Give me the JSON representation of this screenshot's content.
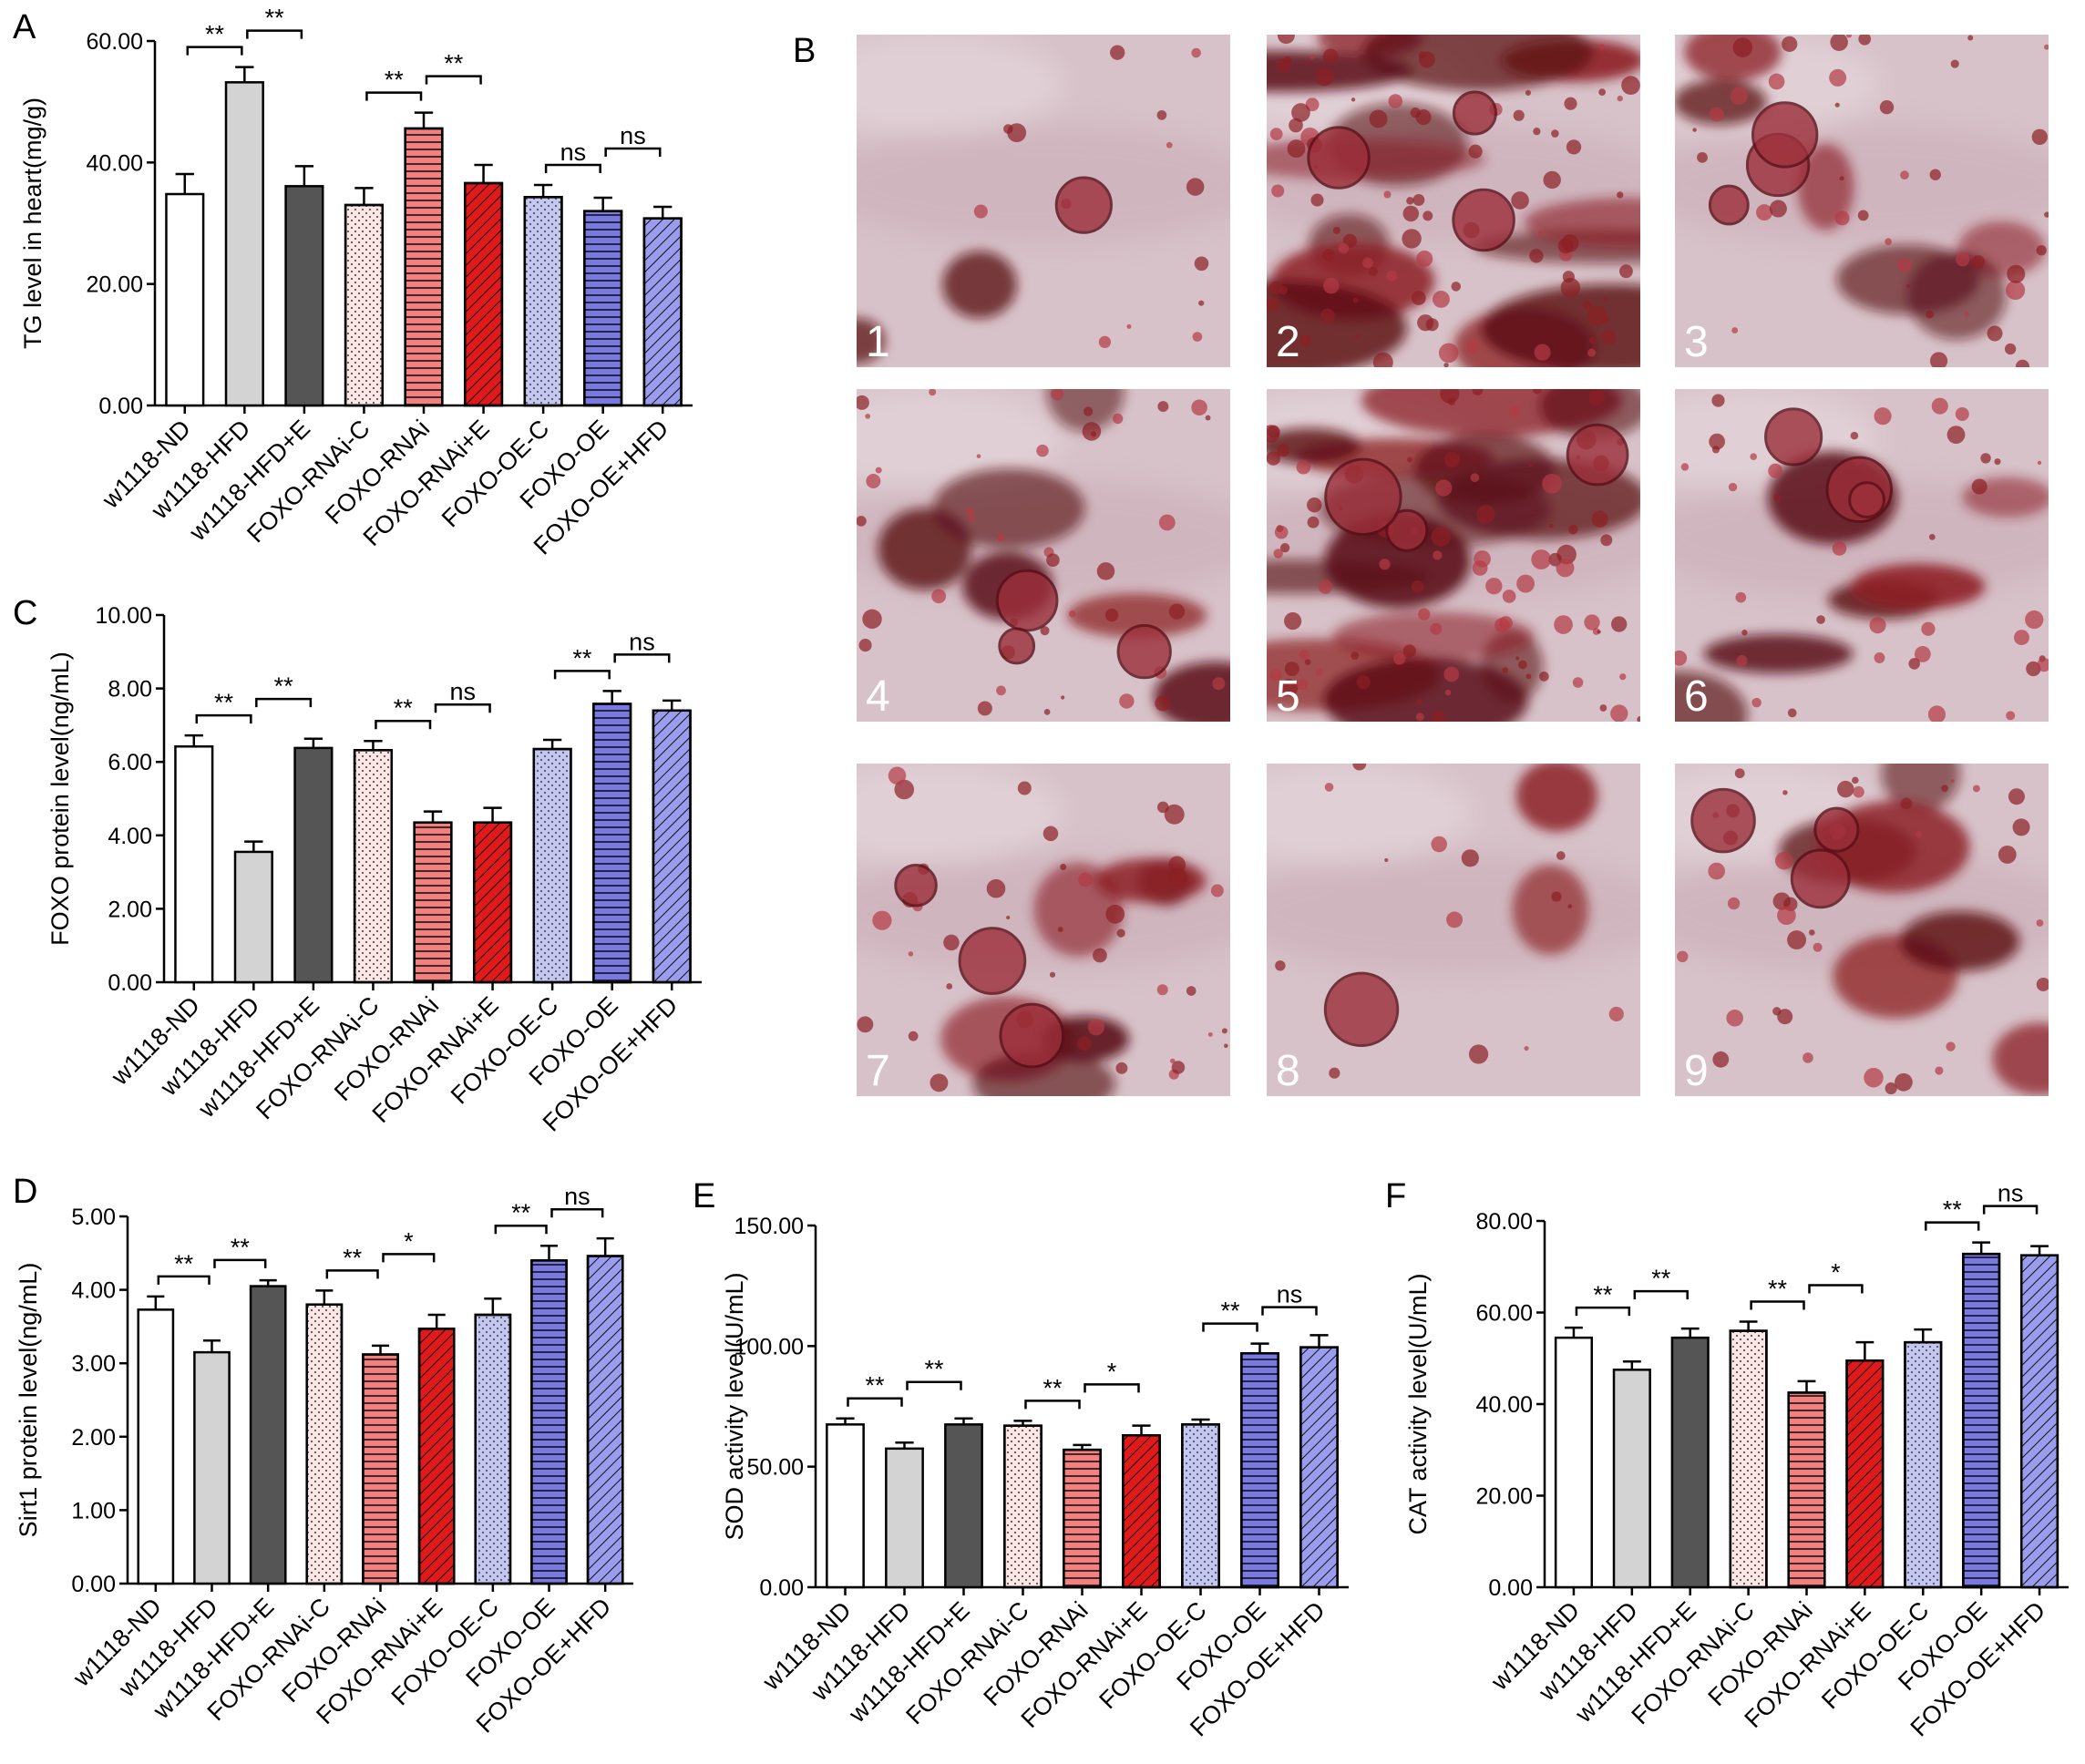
{
  "colors": {
    "axis": "#000000",
    "white_bar": "#ffffff",
    "light_gray_bar": "#d3d3d3",
    "dark_gray_bar": "#555555",
    "pink_bar": "#fce6e6",
    "salmon_bar": "#f47f7f",
    "red_bar": "#e01a1a",
    "lavender_bar": "#c4c7f2",
    "blue_bar": "#7879e3",
    "periwinkle_bar": "#9a9cee",
    "tissue_base": "#d7c2c9",
    "lipid_droplet": "#8c2024"
  },
  "bar_styles": [
    {
      "fill": "#ffffff",
      "pattern": "none"
    },
    {
      "fill": "#d3d3d3",
      "pattern": "none"
    },
    {
      "fill": "#555555",
      "pattern": "none"
    },
    {
      "fill": "#fce6e6",
      "pattern": "dots"
    },
    {
      "fill": "#f47f7f",
      "pattern": "hlines"
    },
    {
      "fill": "#e01a1a",
      "pattern": "diag"
    },
    {
      "fill": "#c4c7f2",
      "pattern": "dots"
    },
    {
      "fill": "#7879e3",
      "pattern": "hlines"
    },
    {
      "fill": "#9a9cee",
      "pattern": "diag"
    }
  ],
  "chart_data": [
    {
      "panel": "A",
      "type": "bar",
      "ylabel": "TG level in heart(mg/g)",
      "ylim": [
        0,
        60
      ],
      "yticks": [
        "0.00",
        "20.00",
        "40.00",
        "60.00"
      ],
      "categories": [
        "w1118-ND",
        "w1118-HFD",
        "w1118-HFD+E",
        "FOXO-RNAi-C",
        "FOXO-RNAi",
        "FOXO-RNAi+E",
        "FOXO-OE-C",
        "FOXO-OE",
        "FOXO-OE+HFD"
      ],
      "values": [
        34.8,
        53.2,
        36.1,
        33.0,
        45.6,
        36.6,
        34.3,
        32.0,
        30.8
      ],
      "errors": [
        3.3,
        2.5,
        3.3,
        2.8,
        2.6,
        3.0,
        2.0,
        2.2,
        1.9
      ],
      "significance": [
        {
          "from": 0,
          "to": 1,
          "label": "**"
        },
        {
          "from": 1,
          "to": 2,
          "label": "**"
        },
        {
          "from": 3,
          "to": 4,
          "label": "**"
        },
        {
          "from": 4,
          "to": 5,
          "label": "**"
        },
        {
          "from": 6,
          "to": 7,
          "label": "ns"
        },
        {
          "from": 7,
          "to": 8,
          "label": "ns"
        }
      ]
    },
    {
      "panel": "C",
      "type": "bar",
      "ylabel": "FOXO protein level(ng/mL)",
      "ylim": [
        0,
        10
      ],
      "yticks": [
        "0.00",
        "2.00",
        "4.00",
        "6.00",
        "8.00",
        "10.00"
      ],
      "categories": [
        "w1118-ND",
        "w1118-HFD",
        "w1118-HFD+E",
        "FOXO-RNAi-C",
        "FOXO-RNAi",
        "FOXO-RNAi+E",
        "FOXO-OE-C",
        "FOXO-OE",
        "FOXO-OE+HFD"
      ],
      "values": [
        6.42,
        3.55,
        6.38,
        6.32,
        4.35,
        4.35,
        6.35,
        7.58,
        7.4
      ],
      "errors": [
        0.3,
        0.28,
        0.25,
        0.25,
        0.3,
        0.4,
        0.25,
        0.35,
        0.27
      ],
      "significance": [
        {
          "from": 0,
          "to": 1,
          "label": "**"
        },
        {
          "from": 1,
          "to": 2,
          "label": "**"
        },
        {
          "from": 3,
          "to": 4,
          "label": "**"
        },
        {
          "from": 4,
          "to": 5,
          "label": "ns"
        },
        {
          "from": 6,
          "to": 7,
          "label": "**"
        },
        {
          "from": 7,
          "to": 8,
          "label": "ns"
        }
      ]
    },
    {
      "panel": "D",
      "type": "bar",
      "ylabel": "Sirt1 protein level(ng/mL)",
      "ylim": [
        0,
        5
      ],
      "yticks": [
        "0.00",
        "1.00",
        "2.00",
        "3.00",
        "4.00",
        "5.00"
      ],
      "categories": [
        "w1118-ND",
        "w1118-HFD",
        "w1118-HFD+E",
        "FOXO-RNAi-C",
        "FOXO-RNAi",
        "FOXO-RNAi+E",
        "FOXO-OE-C",
        "FOXO-OE",
        "FOXO-OE+HFD"
      ],
      "values": [
        3.73,
        3.15,
        4.05,
        3.8,
        3.12,
        3.47,
        3.66,
        4.4,
        4.46
      ],
      "errors": [
        0.18,
        0.16,
        0.08,
        0.19,
        0.12,
        0.19,
        0.22,
        0.2,
        0.24
      ],
      "significance": [
        {
          "from": 0,
          "to": 1,
          "label": "**"
        },
        {
          "from": 1,
          "to": 2,
          "label": "**"
        },
        {
          "from": 3,
          "to": 4,
          "label": "**"
        },
        {
          "from": 4,
          "to": 5,
          "label": "*"
        },
        {
          "from": 6,
          "to": 7,
          "label": "**"
        },
        {
          "from": 7,
          "to": 8,
          "label": "ns"
        }
      ]
    },
    {
      "panel": "E",
      "type": "bar",
      "ylabel": "SOD activity level(U/mL)",
      "ylim": [
        0,
        150
      ],
      "yticks": [
        "0.00",
        "50.00",
        "100.00",
        "150.00"
      ],
      "categories": [
        "w1118-ND",
        "w1118-HFD",
        "w1118-HFD+E",
        "FOXO-RNAi-C",
        "FOXO-RNAi",
        "FOXO-RNAi+E",
        "FOXO-OE-C",
        "FOXO-OE",
        "FOXO-OE+HFD"
      ],
      "values": [
        67.5,
        57.5,
        67.5,
        67.0,
        57.0,
        63.0,
        67.5,
        97.0,
        99.5
      ],
      "errors": [
        2.5,
        2.5,
        2.5,
        2.0,
        2.0,
        4.0,
        2.0,
        4.0,
        5.0
      ],
      "significance": [
        {
          "from": 0,
          "to": 1,
          "label": "**"
        },
        {
          "from": 1,
          "to": 2,
          "label": "**"
        },
        {
          "from": 3,
          "to": 4,
          "label": "**"
        },
        {
          "from": 4,
          "to": 5,
          "label": "*"
        },
        {
          "from": 6,
          "to": 7,
          "label": "**"
        },
        {
          "from": 7,
          "to": 8,
          "label": "ns"
        }
      ]
    },
    {
      "panel": "F",
      "type": "bar",
      "ylabel": "CAT activity level(U/mL)",
      "ylim": [
        0,
        80
      ],
      "yticks": [
        "0.00",
        "20.00",
        "40.00",
        "60.00",
        "80.00"
      ],
      "categories": [
        "w1118-ND",
        "w1118-HFD",
        "w1118-HFD+E",
        "FOXO-RNAi-C",
        "FOXO-RNAi",
        "FOXO-RNAi+E",
        "FOXO-OE-C",
        "FOXO-OE",
        "FOXO-OE+HFD"
      ],
      "values": [
        54.5,
        47.5,
        54.5,
        56.0,
        42.5,
        49.5,
        53.5,
        72.8,
        72.5
      ],
      "errors": [
        2.2,
        1.8,
        2.0,
        2.0,
        2.5,
        4.0,
        2.8,
        2.5,
        2.0
      ],
      "significance": [
        {
          "from": 0,
          "to": 1,
          "label": "**"
        },
        {
          "from": 1,
          "to": 2,
          "label": "**"
        },
        {
          "from": 3,
          "to": 4,
          "label": "**"
        },
        {
          "from": 4,
          "to": 5,
          "label": "*"
        },
        {
          "from": 6,
          "to": 7,
          "label": "**"
        },
        {
          "from": 7,
          "to": 8,
          "label": "ns"
        }
      ]
    }
  ],
  "panel_b": {
    "letter": "B",
    "images": [
      {
        "number": "1",
        "stain": "light"
      },
      {
        "number": "2",
        "stain": "heavy"
      },
      {
        "number": "3",
        "stain": "medium"
      },
      {
        "number": "4",
        "stain": "medium"
      },
      {
        "number": "5",
        "stain": "heavy"
      },
      {
        "number": "6",
        "stain": "medium"
      },
      {
        "number": "7",
        "stain": "medium"
      },
      {
        "number": "8",
        "stain": "light"
      },
      {
        "number": "9",
        "stain": "medium"
      }
    ]
  }
}
